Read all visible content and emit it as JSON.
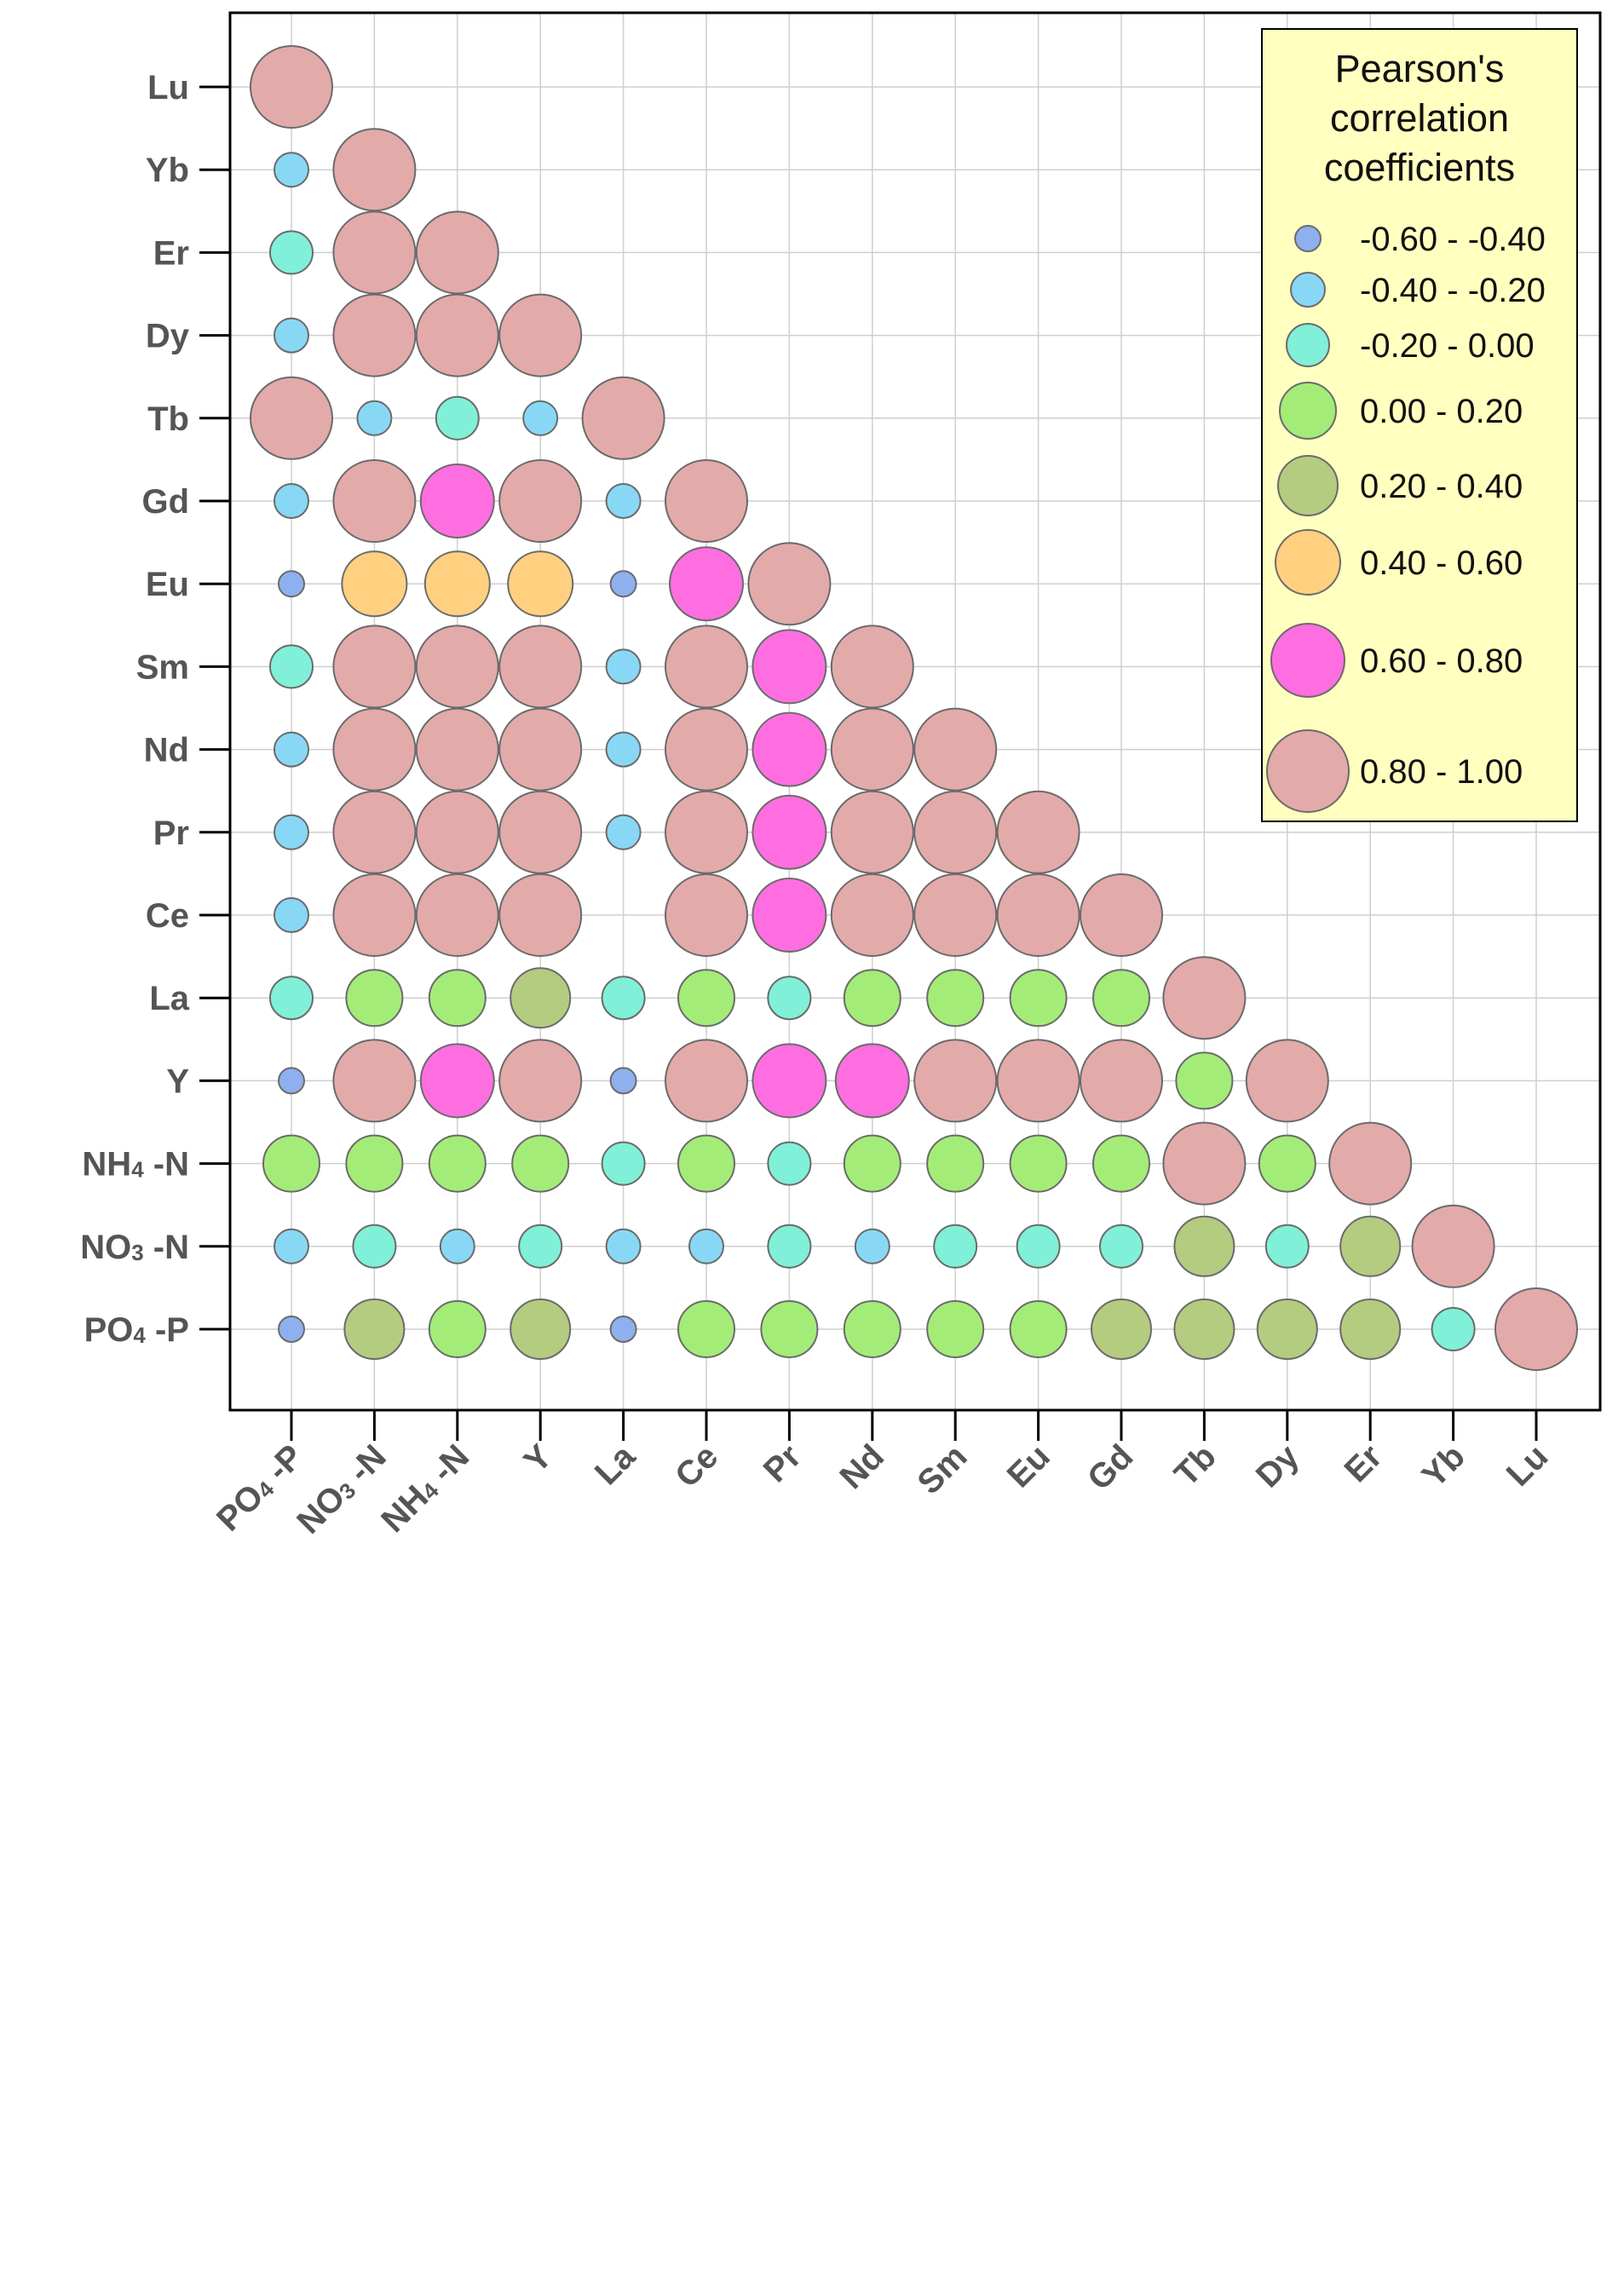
{
  "chart_data": {
    "type": "bubble-correlation-matrix",
    "title": "",
    "xlabel": "",
    "ylabel": "",
    "x_labels": [
      "PO4 -P",
      "NO3 -N",
      "NH4 -N",
      "Y",
      "La",
      "Ce",
      "Pr",
      "Nd",
      "Sm",
      "Eu",
      "Gd",
      "Tb",
      "Dy",
      "Er",
      "Yb",
      "Lu"
    ],
    "y_labels": [
      "Lu",
      "Yb",
      "Er",
      "Dy",
      "Tb",
      "Gd",
      "Eu",
      "Sm",
      "Nd",
      "Pr",
      "Ce",
      "La",
      "Y",
      "NH4 -N",
      "NO3 -N",
      "PO4 -P"
    ],
    "x_labels_display": [
      {
        "base": "PO",
        "sub": "4",
        "tail": " -P"
      },
      {
        "base": "NO",
        "sub": "3",
        "tail": " -N"
      },
      {
        "base": "NH",
        "sub": "4",
        "tail": " -N"
      },
      {
        "base": "Y",
        "sub": "",
        "tail": ""
      },
      {
        "base": "La",
        "sub": "",
        "tail": ""
      },
      {
        "base": "Ce",
        "sub": "",
        "tail": ""
      },
      {
        "base": "Pr",
        "sub": "",
        "tail": ""
      },
      {
        "base": "Nd",
        "sub": "",
        "tail": ""
      },
      {
        "base": "Sm",
        "sub": "",
        "tail": ""
      },
      {
        "base": "Eu",
        "sub": "",
        "tail": ""
      },
      {
        "base": "Gd",
        "sub": "",
        "tail": ""
      },
      {
        "base": "Tb",
        "sub": "",
        "tail": ""
      },
      {
        "base": "Dy",
        "sub": "",
        "tail": ""
      },
      {
        "base": "Er",
        "sub": "",
        "tail": ""
      },
      {
        "base": "Yb",
        "sub": "",
        "tail": ""
      },
      {
        "base": "Lu",
        "sub": "",
        "tail": ""
      }
    ],
    "y_labels_display": [
      {
        "base": "Lu",
        "sub": "",
        "tail": ""
      },
      {
        "base": "Yb",
        "sub": "",
        "tail": ""
      },
      {
        "base": "Er",
        "sub": "",
        "tail": ""
      },
      {
        "base": "Dy",
        "sub": "",
        "tail": ""
      },
      {
        "base": "Tb",
        "sub": "",
        "tail": ""
      },
      {
        "base": "Gd",
        "sub": "",
        "tail": ""
      },
      {
        "base": "Eu",
        "sub": "",
        "tail": ""
      },
      {
        "base": "Sm",
        "sub": "",
        "tail": ""
      },
      {
        "base": "Nd",
        "sub": "",
        "tail": ""
      },
      {
        "base": "Pr",
        "sub": "",
        "tail": ""
      },
      {
        "base": "Ce",
        "sub": "",
        "tail": ""
      },
      {
        "base": "La",
        "sub": "",
        "tail": ""
      },
      {
        "base": "Y",
        "sub": "",
        "tail": ""
      },
      {
        "base": "NH",
        "sub": "4",
        "tail": " -N"
      },
      {
        "base": "NO",
        "sub": "3",
        "tail": " -N"
      },
      {
        "base": "PO",
        "sub": "4",
        "tail": " -P"
      }
    ],
    "legend": {
      "title_lines": [
        "Pearson's",
        "correlation",
        "coefficients"
      ],
      "position": "top-right",
      "background": "#ffffc0",
      "classes": [
        {
          "label": "-0.60 - -0.40",
          "color": "#8fb0ee"
        },
        {
          "label": "-0.40 - -0.20",
          "color": "#88d8f5"
        },
        {
          "label": "-0.20 - 0.00",
          "color": "#80f0d8"
        },
        {
          "label": "0.00 - 0.20",
          "color": "#a4ec78"
        },
        {
          "label": "0.20 - 0.40",
          "color": "#b4cc80"
        },
        {
          "label": "0.40 - 0.60",
          "color": "#ffd080"
        },
        {
          "label": "0.60 - 0.80",
          "color": "#ff6ee0"
        },
        {
          "label": "0.80 - 1.00",
          "color": "#e3aaaa"
        }
      ]
    },
    "cells_by_row": [
      {
        "row": "Lu",
        "classes": [
          7
        ]
      },
      {
        "row": "Yb",
        "classes": [
          1,
          7
        ]
      },
      {
        "row": "Er",
        "classes": [
          2,
          7,
          7
        ]
      },
      {
        "row": "Dy",
        "classes": [
          1,
          7,
          7,
          7
        ]
      },
      {
        "row": "Tb",
        "classes": [
          7,
          1,
          2,
          1,
          7
        ]
      },
      {
        "row": "Gd",
        "classes": [
          1,
          7,
          6,
          7,
          1,
          7
        ]
      },
      {
        "row": "Eu",
        "classes": [
          0,
          5,
          5,
          5,
          0,
          6,
          7
        ]
      },
      {
        "row": "Sm",
        "classes": [
          2,
          7,
          7,
          7,
          1,
          7,
          6,
          7
        ]
      },
      {
        "row": "Nd",
        "classes": [
          1,
          7,
          7,
          7,
          1,
          7,
          6,
          7,
          7
        ]
      },
      {
        "row": "Pr",
        "classes": [
          1,
          7,
          7,
          7,
          1,
          7,
          6,
          7,
          7,
          7
        ]
      },
      {
        "row": "Ce",
        "classes": [
          1,
          7,
          7,
          7,
          null,
          7,
          6,
          7,
          7,
          7,
          7
        ]
      },
      {
        "row": "La",
        "classes": [
          2,
          3,
          3,
          4,
          2,
          3,
          2,
          3,
          3,
          3,
          3,
          7
        ]
      },
      {
        "row": "Y",
        "classes": [
          0,
          7,
          6,
          7,
          0,
          7,
          6,
          6,
          7,
          7,
          7,
          3,
          7
        ]
      },
      {
        "row": "NH4 -N",
        "classes": [
          3,
          3,
          3,
          3,
          2,
          3,
          2,
          3,
          3,
          3,
          3,
          7,
          3,
          7
        ]
      },
      {
        "row": "NO3 -N",
        "classes": [
          1,
          2,
          1,
          2,
          1,
          1,
          2,
          1,
          2,
          2,
          2,
          4,
          2,
          4,
          7
        ]
      },
      {
        "row": "PO4 -P",
        "classes": [
          0,
          4,
          3,
          4,
          0,
          3,
          3,
          3,
          3,
          3,
          4,
          4,
          4,
          4,
          2,
          7
        ]
      }
    ],
    "grid": true
  }
}
